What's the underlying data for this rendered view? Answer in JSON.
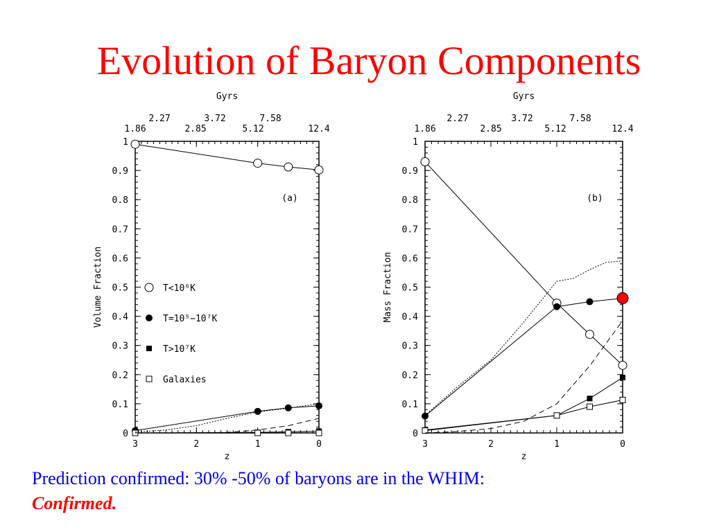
{
  "slide": {
    "title": "Evolution of Baryon Components",
    "caption": "Prediction confirmed: 30% -50% of baryons are in the WHIM:",
    "caption_emphasis": "Confirmed."
  },
  "chart_data": [
    {
      "type": "line",
      "panel_label": "(a)",
      "xlabel": "z",
      "ylabel": "Volume Fraction",
      "top_axis_title": "Gyrs",
      "top_tick_labels_upper": [
        "2.27",
        "3.72",
        "7.58"
      ],
      "top_tick_labels_lower": [
        "1.86",
        "2.85",
        "5.12",
        "12.4"
      ],
      "xlim": [
        3,
        0
      ],
      "ylim": [
        0,
        1
      ],
      "x_ticks": [
        3,
        2,
        1,
        0
      ],
      "y_ticks": [
        0,
        0.1,
        0.2,
        0.3,
        0.4,
        0.5,
        0.6,
        0.7,
        0.8,
        0.9,
        1
      ],
      "legend": [
        "T<10⁶K",
        "T=10⁵−10⁷K",
        "T>10⁷K",
        "Galaxies"
      ],
      "series": [
        {
          "name": "T<10⁶K",
          "marker": "open-circle",
          "x": [
            3,
            1,
            0.5,
            0
          ],
          "y": [
            0.99,
            0.925,
            0.912,
            0.902
          ]
        },
        {
          "name": "T=10⁵−10⁷K",
          "marker": "filled-circle",
          "x": [
            3,
            1,
            0.5,
            0
          ],
          "y": [
            0.008,
            0.074,
            0.086,
            0.093
          ]
        },
        {
          "name": "T>10⁷K",
          "marker": "filled-square",
          "x": [
            3,
            1,
            0.5,
            0
          ],
          "y": [
            0.0,
            0.002,
            0.004,
            0.006
          ]
        },
        {
          "name": "Galaxies",
          "marker": "open-square",
          "x": [
            3,
            1,
            0.5,
            0
          ],
          "y": [
            0.0,
            0.0,
            0.0,
            0.0
          ]
        },
        {
          "marker": "none",
          "dash": "dotted",
          "x": [
            3,
            2.5,
            2,
            1.5,
            1,
            0.5,
            0
          ],
          "y": [
            0.003,
            0.01,
            0.025,
            0.05,
            0.072,
            0.085,
            0.1
          ]
        },
        {
          "marker": "none",
          "dash": "dashed",
          "x": [
            3,
            2,
            1.5,
            1,
            0.5,
            0
          ],
          "y": [
            0.0,
            0.0,
            0.002,
            0.01,
            0.025,
            0.05
          ]
        }
      ]
    },
    {
      "type": "line",
      "panel_label": "(b)",
      "xlabel": "z",
      "ylabel": "Mass Fraction",
      "top_axis_title": "Gyrs",
      "top_tick_labels_upper": [
        "2.27",
        "3.72",
        "7.58"
      ],
      "top_tick_labels_lower": [
        "1.86",
        "2.85",
        "5.12",
        "12.4"
      ],
      "xlim": [
        3,
        0
      ],
      "ylim": [
        0,
        1
      ],
      "x_ticks": [
        3,
        2,
        1,
        0
      ],
      "y_ticks": [
        0,
        0.1,
        0.2,
        0.3,
        0.4,
        0.5,
        0.6,
        0.7,
        0.8,
        0.9,
        1
      ],
      "highlight_point": {
        "x": 0,
        "y": 0.462,
        "color": "#ff0000"
      },
      "series": [
        {
          "name": "T<10⁶K",
          "marker": "open-circle",
          "x": [
            3,
            1,
            0.5,
            0
          ],
          "y": [
            0.93,
            0.445,
            0.338,
            0.232
          ]
        },
        {
          "name": "T=10⁵−10⁷K",
          "marker": "filled-circle",
          "x": [
            3,
            1,
            0.5,
            0
          ],
          "y": [
            0.058,
            0.433,
            0.45,
            0.462
          ]
        },
        {
          "name": "T>10⁷K",
          "marker": "filled-square",
          "x": [
            3,
            1,
            0.5,
            0
          ],
          "y": [
            0.01,
            0.06,
            0.118,
            0.19
          ]
        },
        {
          "name": "Galaxies",
          "marker": "open-square",
          "x": [
            3,
            1,
            0.5,
            0
          ],
          "y": [
            0.008,
            0.06,
            0.09,
            0.113
          ]
        },
        {
          "marker": "none",
          "dash": "dotted",
          "x": [
            3,
            2.5,
            2,
            1.5,
            1,
            0.75,
            0.5,
            0.25,
            0
          ],
          "y": [
            0.06,
            0.16,
            0.25,
            0.38,
            0.52,
            0.53,
            0.56,
            0.585,
            0.59
          ]
        },
        {
          "marker": "none",
          "dash": "dashed",
          "x": [
            3,
            2.5,
            2,
            1.5,
            1,
            0.5,
            0
          ],
          "y": [
            0.0,
            0.005,
            0.015,
            0.04,
            0.1,
            0.23,
            0.385
          ]
        }
      ]
    }
  ]
}
